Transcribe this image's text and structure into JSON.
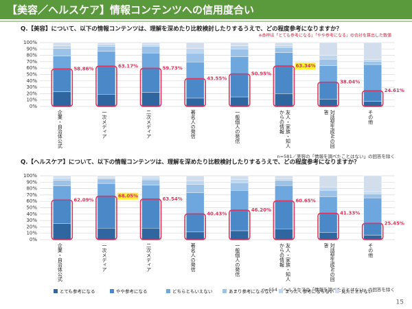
{
  "title": "【美容／ヘルスケア】情報コンテンツへの信用度合い",
  "page_number": 15,
  "series_styles": [
    {
      "name": "とても参考になる",
      "color": "#2f66a0"
    },
    {
      "name": "やや参考になる",
      "color": "#4a88c8"
    },
    {
      "name": "どちらともいえない",
      "color": "#6ea7de"
    },
    {
      "name": "あまり参考にならない",
      "color": "#9cc2e8"
    },
    {
      "name": "まったく参考にならない",
      "color": "#bdd6ef"
    },
    {
      "name": "見たことがない",
      "color": "#d3deec"
    }
  ],
  "chart_data": [
    {
      "type": "stacked_bar",
      "title": "Q.【美容】について、以下の情報コンテンツは、理解を深めたり比較検討したりするうえで、どの程度参考になりますか？",
      "annotation": "※赤枠は「とても参考になる」「やや参考になる」の合計を算出した数値",
      "footnote": "n=581／美容の「情報を調べたことはない」の回答を除く",
      "categories": [
        "企業・自治体公式",
        "一次メディア",
        "二次メディア",
        "著名人の発信",
        "一般個人の発信",
        "友人・家族・知人からの情報",
        "対話型生成AIの回答",
        "その他"
      ],
      "series": [
        {
          "values": [
            23,
            19,
            22,
            13,
            15,
            20,
            11,
            8
          ]
        },
        {
          "values": [
            35.86,
            44.17,
            37.73,
            30.55,
            35.95,
            43.34,
            27.04,
            16.61
          ]
        },
        {
          "values": [
            20,
            23,
            24,
            26,
            27,
            21,
            26,
            41
          ]
        },
        {
          "values": [
            12,
            8,
            10,
            14,
            12,
            8,
            10,
            5
          ]
        },
        {
          "values": [
            4,
            3,
            3,
            7,
            5,
            3,
            6,
            3
          ]
        },
        {
          "values": [
            5.14,
            2.83,
            3.27,
            9.45,
            5.05,
            4.66,
            19.96,
            26.39
          ]
        }
      ],
      "highlight": {
        "values": [
          58.86,
          63.17,
          59.73,
          43.55,
          50.95,
          63.34,
          38.04,
          24.61
        ],
        "value_labels": [
          "58.86%",
          "63.17%",
          "59.73%",
          "43.55%",
          "50.95%",
          "63.34%",
          "38.04%",
          "24.61%"
        ],
        "emphasized_index": 5
      },
      "ylim": [
        0,
        100
      ],
      "yticks": [
        {
          "value": 0,
          "label": "0%"
        },
        {
          "value": 10,
          "label": "10%"
        },
        {
          "value": 20,
          "label": "20%"
        },
        {
          "value": 30,
          "label": "30%"
        },
        {
          "value": 40,
          "label": "40%"
        },
        {
          "value": 50,
          "label": "50%"
        },
        {
          "value": 60,
          "label": "60%"
        },
        {
          "value": 70,
          "label": "70%"
        },
        {
          "value": 80,
          "label": "80%"
        },
        {
          "value": 90,
          "label": "90%"
        },
        {
          "value": 100,
          "label": "100%"
        }
      ],
      "grid": true
    },
    {
      "type": "stacked_bar",
      "title": "Q.【ヘルスケア】について、以下の情報コンテンツは、理解を深めたり比較検討したりするうえで、どの程度参考になりますか？",
      "footnote": "n=554 ／ヘルスケアの「情報を調べたことはない」の回答を除く",
      "categories": [
        "企業・自治体公式",
        "一次メディア",
        "二次メディア",
        "著名人の発信",
        "一般個人の発信",
        "友人・家族・知人からの情報",
        "対話型生成AIの回答",
        "その他"
      ],
      "series": [
        {
          "values": [
            25,
            18,
            18,
            12,
            14,
            17,
            11,
            7
          ]
        },
        {
          "values": [
            37.09,
            50.05,
            45.54,
            28.43,
            32.2,
            43.65,
            30.33,
            18.45
          ]
        },
        {
          "values": [
            22,
            20,
            22,
            33,
            31,
            24,
            26,
            40
          ]
        },
        {
          "values": [
            9,
            7,
            8,
            13,
            12,
            8,
            10,
            6
          ]
        },
        {
          "values": [
            3,
            2,
            3,
            6,
            5,
            3,
            5,
            3
          ]
        },
        {
          "values": [
            3.91,
            2.95,
            3.46,
            7.57,
            5.8,
            4.35,
            17.67,
            25.55
          ]
        }
      ],
      "highlight": {
        "values": [
          62.09,
          68.05,
          63.54,
          40.43,
          46.2,
          60.65,
          41.33,
          25.45
        ],
        "value_labels": [
          "62.09%",
          "68.05%",
          "63.54%",
          "40.43%",
          "46.20%",
          "60.65%",
          "41.33%",
          "25.45%"
        ],
        "emphasized_index": 1
      },
      "ylim": [
        0,
        100
      ],
      "yticks": [
        {
          "value": 0,
          "label": "0%"
        },
        {
          "value": 10,
          "label": "10%"
        },
        {
          "value": 20,
          "label": "20%"
        },
        {
          "value": 30,
          "label": "30%"
        },
        {
          "value": 40,
          "label": "40%"
        },
        {
          "value": 50,
          "label": "50%"
        },
        {
          "value": 60,
          "label": "60%"
        },
        {
          "value": 70,
          "label": "70%"
        },
        {
          "value": 80,
          "label": "80%"
        },
        {
          "value": 90,
          "label": "90%"
        },
        {
          "value": 100,
          "label": "100%"
        }
      ],
      "grid": true
    }
  ]
}
